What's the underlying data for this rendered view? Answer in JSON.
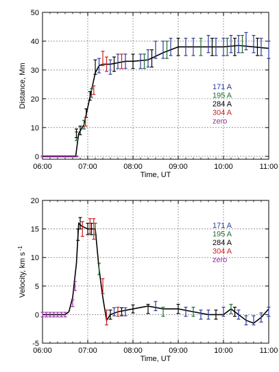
{
  "chart_data": [
    {
      "type": "line",
      "xlabel": "Time, UT",
      "ylabel": "Distance, Mm",
      "xlim": [
        "06:00",
        "11:00"
      ],
      "ylim": [
        -1,
        50
      ],
      "x_ticks": [
        "06:00",
        "07:00",
        "08:00",
        "09:00",
        "10:00",
        "11:00"
      ],
      "y_ticks": [
        0,
        10,
        20,
        30,
        40,
        50
      ],
      "grid": true,
      "legend_position": "right",
      "legend": [
        {
          "name": "171 A",
          "color": "#2b3a9a"
        },
        {
          "name": "195 A",
          "color": "#1c6b2f"
        },
        {
          "name": "284 A",
          "color": "#000000"
        },
        {
          "name": "304 A",
          "color": "#d01c1c"
        },
        {
          "name": "zero",
          "color": "#9b2fa6"
        }
      ],
      "series": [
        {
          "name": "171 A",
          "color": "#2b3a9a",
          "x": [
            "07:15",
            "07:30",
            "07:40",
            "07:50",
            "08:10",
            "08:20",
            "08:30",
            "08:40",
            "08:50",
            "09:10",
            "09:20",
            "09:40",
            "09:50",
            "10:00",
            "10:10",
            "10:20",
            "10:30",
            "10:40",
            "10:50",
            "11:00"
          ],
          "y": [
            31.5,
            31,
            33,
            33,
            33,
            34,
            37,
            37,
            38,
            38,
            38,
            39,
            38,
            38,
            39,
            39,
            40,
            39,
            38,
            37
          ],
          "err": [
            2.5,
            2.5,
            2.5,
            2.5,
            2.5,
            3,
            3,
            3,
            3,
            3,
            3,
            3,
            3,
            3,
            3,
            3,
            3,
            3,
            3,
            3
          ]
        },
        {
          "name": "195 A",
          "color": "#1c6b2f",
          "x": [
            "06:45",
            "06:55",
            "07:05",
            "08:15",
            "08:45",
            "09:30",
            "10:05",
            "10:25"
          ],
          "y": [
            7,
            11,
            22,
            33,
            37,
            38,
            38,
            39
          ],
          "err": [
            1.5,
            1.5,
            1.5,
            2.5,
            3,
            3,
            3,
            3
          ]
        },
        {
          "name": "284 A",
          "color": "#000000",
          "x": [
            "06:45",
            "06:50",
            "06:58",
            "07:03",
            "07:10",
            "07:35",
            "08:00",
            "08:25",
            "09:00",
            "09:45",
            "10:15",
            "10:45"
          ],
          "y": [
            8,
            9,
            15,
            21,
            31,
            32,
            33,
            34,
            38,
            38,
            38,
            38
          ],
          "err": [
            1.5,
            1.5,
            1.5,
            1.5,
            2.5,
            2.5,
            2.5,
            3,
            3,
            3,
            3,
            3
          ]
        },
        {
          "name": "304 A",
          "color": "#d01c1c",
          "x": [
            "06:57",
            "07:08",
            "07:20",
            "07:25",
            "07:45"
          ],
          "y": [
            12,
            23,
            34,
            32,
            33
          ],
          "err": [
            1.5,
            1.5,
            2.5,
            2.5,
            2.5
          ]
        },
        {
          "name": "zero",
          "color": "#9b2fa6",
          "x": [
            "06:00",
            "06:05",
            "06:10",
            "06:15",
            "06:20",
            "06:25",
            "06:30",
            "06:35",
            "06:40",
            "06:45"
          ],
          "y": [
            0,
            0,
            0,
            0,
            0,
            0,
            0,
            0,
            0,
            0
          ],
          "err": [
            0.2,
            0.2,
            0.2,
            0.2,
            0.2,
            0.2,
            0.2,
            0.2,
            0.2,
            0.2
          ]
        }
      ],
      "fit_line": {
        "x": [
          "06:00",
          "06:44",
          "06:48",
          "06:55",
          "07:00",
          "07:05",
          "07:10",
          "07:15",
          "07:20",
          "07:30",
          "07:40",
          "07:50",
          "08:00",
          "08:20",
          "08:40",
          "09:00",
          "09:20",
          "09:40",
          "10:00",
          "10:20",
          "10:40",
          "11:00"
        ],
        "y": [
          0,
          0,
          8,
          11,
          17,
          23,
          29,
          31.5,
          32,
          32,
          32.5,
          33,
          33,
          33.5,
          36,
          38,
          38,
          38,
          38,
          38.5,
          38,
          37.5
        ]
      }
    },
    {
      "type": "line",
      "xlabel": "Time, UT",
      "ylabel": "Velocity, km s",
      "ylabel_sup": "-1",
      "xlim": [
        "06:00",
        "11:00"
      ],
      "ylim": [
        -5,
        20
      ],
      "x_ticks": [
        "06:00",
        "07:00",
        "08:00",
        "09:00",
        "10:00",
        "11:00"
      ],
      "y_ticks": [
        -5,
        0,
        5,
        10,
        15,
        20
      ],
      "grid": true,
      "legend_position": "right",
      "legend": [
        {
          "name": "171 A",
          "color": "#2b3a9a"
        },
        {
          "name": "195 A",
          "color": "#1c6b2f"
        },
        {
          "name": "284 A",
          "color": "#000000"
        },
        {
          "name": "304 A",
          "color": "#d01c1c"
        },
        {
          "name": "zero",
          "color": "#9b2fa6"
        }
      ],
      "series": [
        {
          "name": "171 A",
          "color": "#2b3a9a",
          "x": [
            "07:35",
            "07:50",
            "08:30",
            "09:10",
            "09:30",
            "09:40",
            "10:00",
            "10:20",
            "10:30",
            "10:40",
            "10:50",
            "11:00"
          ],
          "y": [
            0.5,
            0.5,
            1.5,
            0.5,
            0,
            0,
            0.5,
            0,
            -1,
            -1,
            -0.5,
            0.5
          ],
          "err": [
            0.7,
            0.7,
            0.8,
            0.8,
            0.8,
            0.8,
            0.8,
            0.8,
            0.8,
            0.8,
            0.8,
            0.8
          ]
        },
        {
          "name": "195 A",
          "color": "#1c6b2f",
          "x": [
            "07:10",
            "07:15",
            "08:40",
            "09:20",
            "10:10"
          ],
          "y": [
            15,
            8,
            0.5,
            0.5,
            1
          ],
          "err": [
            1,
            1,
            0.8,
            0.8,
            0.8
          ]
        },
        {
          "name": "284 A",
          "color": "#000000",
          "x": [
            "06:47",
            "06:50",
            "07:00",
            "07:05",
            "07:30",
            "07:45",
            "08:00",
            "08:20",
            "09:00",
            "09:50",
            "10:15"
          ],
          "y": [
            14,
            16,
            15,
            15,
            0,
            0.5,
            1,
            1,
            1,
            0,
            0.5
          ],
          "err": [
            1,
            1,
            1,
            1,
            0.8,
            0.7,
            0.7,
            0.8,
            0.8,
            0.8,
            0.8
          ]
        },
        {
          "name": "304 A",
          "color": "#d01c1c",
          "x": [
            "06:53",
            "07:03",
            "07:08",
            "07:20",
            "07:25",
            "07:40"
          ],
          "y": [
            15,
            15.5,
            15,
            5,
            -0.5,
            0.5
          ],
          "err": [
            1.3,
            1.3,
            1.8,
            1.3,
            1.3,
            0.8
          ]
        },
        {
          "name": "zero",
          "color": "#9b2fa6",
          "x": [
            "06:00",
            "06:05",
            "06:10",
            "06:15",
            "06:20",
            "06:25",
            "06:30",
            "06:40",
            "06:43"
          ],
          "y": [
            0,
            0,
            0,
            0,
            0,
            0,
            0,
            2,
            5
          ],
          "err": [
            0.4,
            0.4,
            0.4,
            0.4,
            0.4,
            0.4,
            0.4,
            0.6,
            0.8
          ]
        }
      ],
      "fit_line": {
        "x": [
          "06:00",
          "06:30",
          "06:35",
          "06:40",
          "06:45",
          "06:48",
          "06:52",
          "07:00",
          "07:05",
          "07:10",
          "07:15",
          "07:20",
          "07:25",
          "07:30",
          "07:40",
          "08:00",
          "08:20",
          "08:40",
          "09:00",
          "09:20",
          "09:40",
          "10:00",
          "10:10",
          "10:20",
          "10:30",
          "10:40",
          "10:50",
          "11:00"
        ],
        "y": [
          0,
          0,
          0.5,
          3,
          9,
          16,
          15.5,
          15,
          15,
          15,
          8,
          3,
          -1,
          0,
          0.5,
          1,
          1.5,
          1,
          1,
          0.5,
          0,
          0,
          1,
          0,
          -1,
          -1.5,
          -0.5,
          1
        ]
      }
    }
  ]
}
